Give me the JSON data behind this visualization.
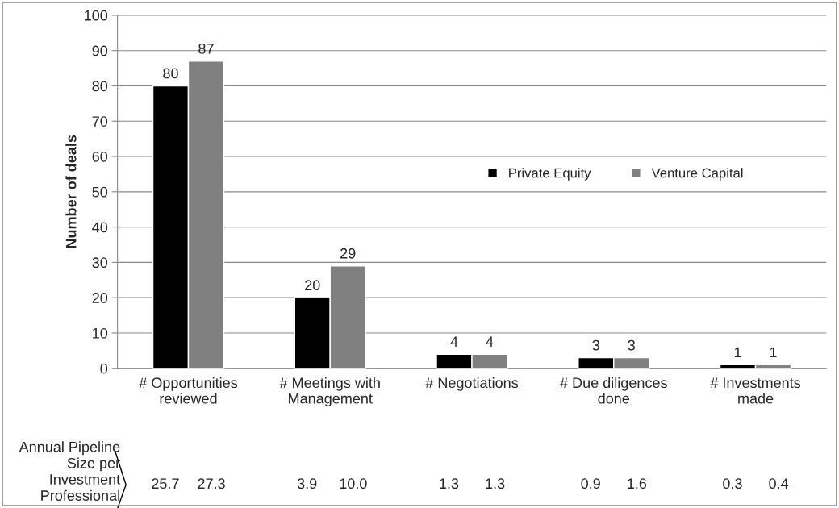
{
  "chart_data": {
    "type": "bar",
    "ylabel": "Number of deals",
    "categories": [
      "# Opportunities\nreviewed",
      "# Meetings with\nManagement",
      "# Negotiations",
      "# Due diligences\ndone",
      "# Investments\nmade"
    ],
    "series": [
      {
        "name": "Private Equity",
        "color": "#000000",
        "values": [
          80,
          20,
          4,
          3,
          1
        ]
      },
      {
        "name": "Venture Capital",
        "color": "#808080",
        "values": [
          87,
          29,
          4,
          3,
          1
        ]
      }
    ],
    "ylim": [
      0,
      100
    ],
    "yticks": [
      0,
      10,
      20,
      30,
      40,
      50,
      60,
      70,
      80,
      90,
      100
    ],
    "grid": "y",
    "legend": "right",
    "data_labels": true,
    "annotations": [
      "Annual Pipeline\nSize per\nInvestment\nProfessional",
      "25.7",
      "27.3",
      "3.9",
      "10.0",
      "1.3",
      "1.3",
      "0.9",
      "1.6",
      "0.3",
      "0.4"
    ]
  }
}
